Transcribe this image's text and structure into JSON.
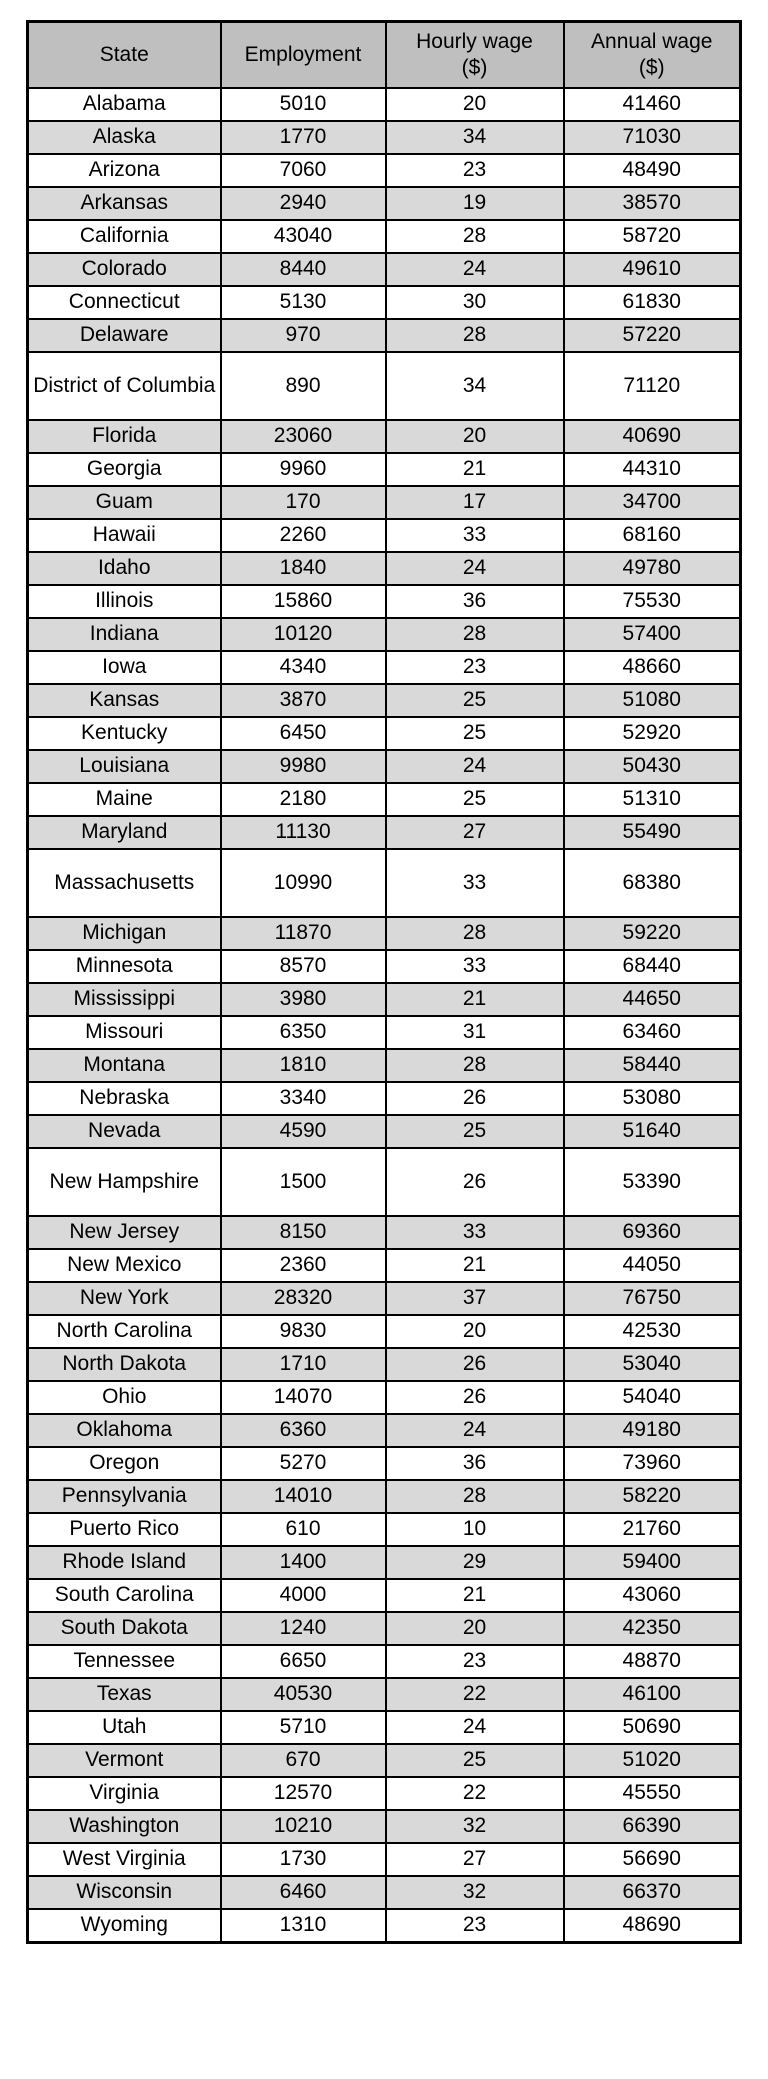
{
  "table": {
    "columns": [
      {
        "label": "State",
        "label2": ""
      },
      {
        "label": "Employment",
        "label2": ""
      },
      {
        "label": "Hourly wage",
        "label2": "($)"
      },
      {
        "label": "Annual wage",
        "label2": "($)"
      }
    ],
    "rows": [
      {
        "state": "Alabama",
        "employment": "5010",
        "hourly": "20",
        "annual": "41460"
      },
      {
        "state": "Alaska",
        "employment": "1770",
        "hourly": "34",
        "annual": "71030"
      },
      {
        "state": "Arizona",
        "employment": "7060",
        "hourly": "23",
        "annual": "48490"
      },
      {
        "state": "Arkansas",
        "employment": "2940",
        "hourly": "19",
        "annual": "38570"
      },
      {
        "state": "California",
        "employment": "43040",
        "hourly": "28",
        "annual": "58720"
      },
      {
        "state": "Colorado",
        "employment": "8440",
        "hourly": "24",
        "annual": "49610"
      },
      {
        "state": "Connecticut",
        "employment": "5130",
        "hourly": "30",
        "annual": "61830"
      },
      {
        "state": "Delaware",
        "employment": "970",
        "hourly": "28",
        "annual": "57220"
      },
      {
        "state": "District of Columbia",
        "employment": "890",
        "hourly": "34",
        "annual": "71120"
      },
      {
        "state": "Florida",
        "employment": "23060",
        "hourly": "20",
        "annual": "40690"
      },
      {
        "state": "Georgia",
        "employment": "9960",
        "hourly": "21",
        "annual": "44310"
      },
      {
        "state": "Guam",
        "employment": "170",
        "hourly": "17",
        "annual": "34700"
      },
      {
        "state": "Hawaii",
        "employment": "2260",
        "hourly": "33",
        "annual": "68160"
      },
      {
        "state": "Idaho",
        "employment": "1840",
        "hourly": "24",
        "annual": "49780"
      },
      {
        "state": "Illinois",
        "employment": "15860",
        "hourly": "36",
        "annual": "75530"
      },
      {
        "state": "Indiana",
        "employment": "10120",
        "hourly": "28",
        "annual": "57400"
      },
      {
        "state": "Iowa",
        "employment": "4340",
        "hourly": "23",
        "annual": "48660"
      },
      {
        "state": "Kansas",
        "employment": "3870",
        "hourly": "25",
        "annual": "51080"
      },
      {
        "state": "Kentucky",
        "employment": "6450",
        "hourly": "25",
        "annual": "52920"
      },
      {
        "state": "Louisiana",
        "employment": "9980",
        "hourly": "24",
        "annual": "50430"
      },
      {
        "state": "Maine",
        "employment": "2180",
        "hourly": "25",
        "annual": "51310"
      },
      {
        "state": "Maryland",
        "employment": "11130",
        "hourly": "27",
        "annual": "55490"
      },
      {
        "state": "Massachusetts",
        "employment": "10990",
        "hourly": "33",
        "annual": "68380"
      },
      {
        "state": "Michigan",
        "employment": "11870",
        "hourly": "28",
        "annual": "59220"
      },
      {
        "state": "Minnesota",
        "employment": "8570",
        "hourly": "33",
        "annual": "68440"
      },
      {
        "state": "Mississippi",
        "employment": "3980",
        "hourly": "21",
        "annual": "44650"
      },
      {
        "state": "Missouri",
        "employment": "6350",
        "hourly": "31",
        "annual": "63460"
      },
      {
        "state": "Montana",
        "employment": "1810",
        "hourly": "28",
        "annual": "58440"
      },
      {
        "state": "Nebraska",
        "employment": "3340",
        "hourly": "26",
        "annual": "53080"
      },
      {
        "state": "Nevada",
        "employment": "4590",
        "hourly": "25",
        "annual": "51640"
      },
      {
        "state": "New Hampshire",
        "employment": "1500",
        "hourly": "26",
        "annual": "53390"
      },
      {
        "state": "New Jersey",
        "employment": "8150",
        "hourly": "33",
        "annual": "69360"
      },
      {
        "state": "New Mexico",
        "employment": "2360",
        "hourly": "21",
        "annual": "44050"
      },
      {
        "state": "New York",
        "employment": "28320",
        "hourly": "37",
        "annual": "76750"
      },
      {
        "state": "North Carolina",
        "employment": "9830",
        "hourly": "20",
        "annual": "42530"
      },
      {
        "state": "North Dakota",
        "employment": "1710",
        "hourly": "26",
        "annual": "53040"
      },
      {
        "state": "Ohio",
        "employment": "14070",
        "hourly": "26",
        "annual": "54040"
      },
      {
        "state": "Oklahoma",
        "employment": "6360",
        "hourly": "24",
        "annual": "49180"
      },
      {
        "state": "Oregon",
        "employment": "5270",
        "hourly": "36",
        "annual": "73960"
      },
      {
        "state": "Pennsylvania",
        "employment": "14010",
        "hourly": "28",
        "annual": "58220"
      },
      {
        "state": "Puerto Rico",
        "employment": "610",
        "hourly": "10",
        "annual": "21760"
      },
      {
        "state": "Rhode Island",
        "employment": "1400",
        "hourly": "29",
        "annual": "59400"
      },
      {
        "state": "South Carolina",
        "employment": "4000",
        "hourly": "21",
        "annual": "43060"
      },
      {
        "state": "South Dakota",
        "employment": "1240",
        "hourly": "20",
        "annual": "42350"
      },
      {
        "state": "Tennessee",
        "employment": "6650",
        "hourly": "23",
        "annual": "48870"
      },
      {
        "state": "Texas",
        "employment": "40530",
        "hourly": "22",
        "annual": "46100"
      },
      {
        "state": "Utah",
        "employment": "5710",
        "hourly": "24",
        "annual": "50690"
      },
      {
        "state": "Vermont",
        "employment": "670",
        "hourly": "25",
        "annual": "51020"
      },
      {
        "state": "Virginia",
        "employment": "12570",
        "hourly": "22",
        "annual": "45550"
      },
      {
        "state": "Washington",
        "employment": "10210",
        "hourly": "32",
        "annual": "66390"
      },
      {
        "state": "West Virginia",
        "employment": "1730",
        "hourly": "27",
        "annual": "56690"
      },
      {
        "state": "Wisconsin",
        "employment": "6460",
        "hourly": "32",
        "annual": "66370"
      },
      {
        "state": "Wyoming",
        "employment": "1310",
        "hourly": "23",
        "annual": "48690"
      }
    ],
    "colors": {
      "header_bg": "#bfbfbf",
      "alt_row_bg": "#d9d9d9",
      "border": "#000000"
    }
  }
}
